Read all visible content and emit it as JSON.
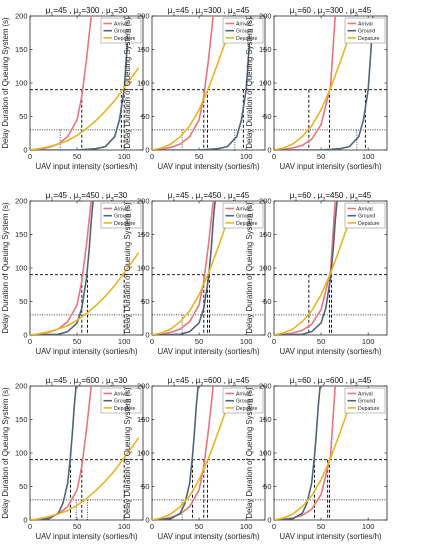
{
  "colors": {
    "arrival": "#e8767e",
    "ground": "#536474",
    "departure": "#e8b424",
    "reference": "#000000",
    "background": "#ffffff"
  },
  "shared": {
    "ylabel": "Delay Duration of Queuing System (s)",
    "xlabel": "UAV input intensity (sorties/h)",
    "xlim": [
      0,
      120
    ],
    "ylim": [
      0,
      200
    ],
    "xticks": [
      "0",
      "50",
      "100"
    ],
    "yticks": [
      "0",
      "50",
      "100",
      "150",
      "200"
    ],
    "legend": [
      "Arrival",
      "Ground",
      "Depature"
    ],
    "legend_position": "top-right"
  },
  "chart_data": [
    {
      "type": "line",
      "title": {
        "mu1": "45",
        "mu2": "300",
        "mu3": "30"
      },
      "series": [
        {
          "name": "Arrival",
          "x": [
            0,
            10,
            20,
            30,
            40,
            50,
            55,
            60,
            65
          ],
          "y": [
            0,
            1,
            4,
            9,
            20,
            45,
            80,
            135,
            200
          ]
        },
        {
          "name": "Ground",
          "x": [
            0,
            50,
            70,
            80,
            90,
            95,
            100,
            103,
            105
          ],
          "y": [
            0,
            0,
            2,
            5,
            20,
            45,
            90,
            150,
            200
          ]
        },
        {
          "name": "Depature",
          "x": [
            0,
            10,
            20,
            30,
            40,
            50,
            60,
            70,
            80,
            90,
            100,
            110,
            115
          ],
          "y": [
            0,
            2,
            5,
            9,
            14,
            22,
            32,
            44,
            58,
            74,
            93,
            112,
            122
          ]
        }
      ],
      "h_refs": [
        {
          "y": 90,
          "style": "dashed"
        },
        {
          "y": 30,
          "style": "dotted"
        }
      ],
      "v_refs": [
        {
          "x": 55,
          "y": 90,
          "style": "dashed"
        },
        {
          "x": 97,
          "y": 90,
          "style": "dashed"
        },
        {
          "x": 100,
          "y": 90,
          "style": "dashed"
        },
        {
          "x": 32,
          "y": 30,
          "style": "dotted"
        }
      ]
    },
    {
      "type": "line",
      "title": {
        "mu1": "45",
        "mu2": "300",
        "mu3": "45"
      },
      "series": [
        {
          "name": "Arrival",
          "x": [
            0,
            10,
            20,
            30,
            40,
            50,
            55,
            60,
            65
          ],
          "y": [
            0,
            1,
            4,
            9,
            20,
            45,
            80,
            135,
            200
          ]
        },
        {
          "name": "Ground",
          "x": [
            0,
            50,
            70,
            80,
            90,
            95,
            100,
            103,
            105
          ],
          "y": [
            0,
            0,
            2,
            5,
            20,
            45,
            90,
            150,
            200
          ]
        },
        {
          "name": "Depature",
          "x": [
            0,
            10,
            20,
            30,
            40,
            50,
            60,
            70,
            80,
            85
          ],
          "y": [
            0,
            3,
            9,
            20,
            36,
            60,
            92,
            130,
            170,
            185
          ]
        }
      ],
      "h_refs": [
        {
          "y": 90,
          "style": "dashed"
        },
        {
          "y": 30,
          "style": "dotted"
        }
      ],
      "v_refs": [
        {
          "x": 55,
          "y": 90,
          "style": "dashed"
        },
        {
          "x": 59,
          "y": 90,
          "style": "dashed"
        },
        {
          "x": 97,
          "y": 90,
          "style": "dashed"
        },
        {
          "x": 32,
          "y": 30,
          "style": "dotted"
        },
        {
          "x": 88,
          "y": 30,
          "style": "dotted"
        }
      ]
    },
    {
      "type": "line",
      "title": {
        "mu1": "60",
        "mu2": "300",
        "mu3": "45"
      },
      "series": [
        {
          "name": "Arrival",
          "x": [
            0,
            10,
            20,
            30,
            40,
            50,
            60,
            65
          ],
          "y": [
            0,
            1,
            3,
            7,
            16,
            38,
            95,
            200
          ]
        },
        {
          "name": "Ground",
          "x": [
            0,
            50,
            70,
            80,
            90,
            95,
            100,
            103,
            105
          ],
          "y": [
            0,
            0,
            2,
            5,
            20,
            45,
            90,
            150,
            200
          ]
        },
        {
          "name": "Depature",
          "x": [
            0,
            10,
            20,
            30,
            40,
            50,
            60,
            70,
            80,
            85
          ],
          "y": [
            0,
            3,
            9,
            20,
            36,
            60,
            92,
            130,
            170,
            185
          ]
        }
      ],
      "h_refs": [
        {
          "y": 90,
          "style": "dashed"
        },
        {
          "y": 30,
          "style": "dotted"
        }
      ],
      "v_refs": [
        {
          "x": 37,
          "y": 90,
          "style": "dashed"
        },
        {
          "x": 59,
          "y": 90,
          "style": "dashed"
        },
        {
          "x": 97,
          "y": 90,
          "style": "dashed"
        },
        {
          "x": 88,
          "y": 30,
          "style": "dotted"
        }
      ]
    },
    {
      "type": "line",
      "title": {
        "mu1": "45",
        "mu2": "450",
        "mu3": "30"
      },
      "series": [
        {
          "name": "Arrival",
          "x": [
            0,
            10,
            20,
            30,
            40,
            50,
            55,
            60,
            65
          ],
          "y": [
            0,
            1,
            4,
            9,
            20,
            45,
            80,
            135,
            200
          ]
        },
        {
          "name": "Ground",
          "x": [
            0,
            30,
            40,
            50,
            55,
            60,
            63,
            65,
            67
          ],
          "y": [
            0,
            1,
            5,
            18,
            40,
            85,
            130,
            170,
            200
          ]
        },
        {
          "name": "Depature",
          "x": [
            0,
            10,
            20,
            30,
            40,
            50,
            60,
            70,
            80,
            90,
            100,
            110,
            115
          ],
          "y": [
            0,
            2,
            5,
            9,
            14,
            22,
            32,
            44,
            58,
            74,
            93,
            112,
            122
          ]
        }
      ],
      "h_refs": [
        {
          "y": 90,
          "style": "dashed"
        },
        {
          "y": 30,
          "style": "dotted"
        }
      ],
      "v_refs": [
        {
          "x": 55,
          "y": 90,
          "style": "dashed"
        },
        {
          "x": 61,
          "y": 90,
          "style": "dashed"
        },
        {
          "x": 100,
          "y": 90,
          "style": "dashed"
        }
      ]
    },
    {
      "type": "line",
      "title": {
        "mu1": "45",
        "mu2": "450",
        "mu3": "45"
      },
      "series": [
        {
          "name": "Arrival",
          "x": [
            0,
            10,
            20,
            30,
            40,
            50,
            55,
            60,
            65
          ],
          "y": [
            0,
            1,
            4,
            9,
            20,
            45,
            80,
            135,
            200
          ]
        },
        {
          "name": "Ground",
          "x": [
            0,
            30,
            40,
            50,
            55,
            60,
            63,
            65,
            67
          ],
          "y": [
            0,
            1,
            5,
            18,
            40,
            85,
            130,
            170,
            200
          ]
        },
        {
          "name": "Depature",
          "x": [
            0,
            10,
            20,
            30,
            40,
            50,
            60,
            70,
            80,
            85
          ],
          "y": [
            0,
            3,
            9,
            20,
            36,
            60,
            92,
            130,
            170,
            185
          ]
        }
      ],
      "h_refs": [
        {
          "y": 90,
          "style": "dashed"
        },
        {
          "y": 30,
          "style": "dotted"
        }
      ],
      "v_refs": [
        {
          "x": 55,
          "y": 90,
          "style": "dashed"
        },
        {
          "x": 59,
          "y": 90,
          "style": "dashed"
        },
        {
          "x": 61,
          "y": 90,
          "style": "dashed"
        },
        {
          "x": 32,
          "y": 30,
          "style": "dotted"
        }
      ]
    },
    {
      "type": "line",
      "title": {
        "mu1": "60",
        "mu2": "450",
        "mu3": "45"
      },
      "series": [
        {
          "name": "Arrival",
          "x": [
            0,
            10,
            20,
            30,
            40,
            50,
            60,
            65
          ],
          "y": [
            0,
            1,
            3,
            7,
            16,
            38,
            95,
            200
          ]
        },
        {
          "name": "Ground",
          "x": [
            0,
            30,
            40,
            50,
            55,
            60,
            63,
            65,
            67
          ],
          "y": [
            0,
            1,
            5,
            18,
            40,
            85,
            130,
            170,
            200
          ]
        },
        {
          "name": "Depature",
          "x": [
            0,
            10,
            20,
            30,
            40,
            50,
            60,
            70,
            80,
            85
          ],
          "y": [
            0,
            3,
            9,
            20,
            36,
            60,
            92,
            130,
            170,
            185
          ]
        }
      ],
      "h_refs": [
        {
          "y": 90,
          "style": "dashed"
        },
        {
          "y": 30,
          "style": "dotted"
        }
      ],
      "v_refs": [
        {
          "x": 37,
          "y": 90,
          "style": "dashed"
        },
        {
          "x": 59,
          "y": 90,
          "style": "dashed"
        },
        {
          "x": 61,
          "y": 90,
          "style": "dashed"
        }
      ]
    },
    {
      "type": "line",
      "title": {
        "mu1": "45",
        "mu2": "600",
        "mu3": "30"
      },
      "series": [
        {
          "name": "Arrival",
          "x": [
            0,
            10,
            20,
            30,
            40,
            50,
            55,
            60,
            65
          ],
          "y": [
            0,
            1,
            4,
            9,
            20,
            45,
            80,
            135,
            200
          ]
        },
        {
          "name": "Ground",
          "x": [
            0,
            20,
            30,
            35,
            40,
            43,
            45,
            47,
            49
          ],
          "y": [
            0,
            2,
            10,
            25,
            55,
            95,
            130,
            170,
            200
          ]
        },
        {
          "name": "Depature",
          "x": [
            0,
            10,
            20,
            30,
            40,
            50,
            60,
            70,
            80,
            90,
            100,
            110,
            115
          ],
          "y": [
            0,
            2,
            5,
            9,
            14,
            22,
            32,
            44,
            58,
            74,
            93,
            112,
            122
          ]
        }
      ],
      "h_refs": [
        {
          "y": 90,
          "style": "dashed"
        },
        {
          "y": 30,
          "style": "dotted"
        }
      ],
      "v_refs": [
        {
          "x": 43,
          "y": 90,
          "style": "dashed"
        },
        {
          "x": 55,
          "y": 90,
          "style": "dashed"
        },
        {
          "x": 100,
          "y": 90,
          "style": "dashed"
        },
        {
          "x": 49,
          "y": 30,
          "style": "dotted"
        },
        {
          "x": 61,
          "y": 30,
          "style": "dotted"
        }
      ]
    },
    {
      "type": "line",
      "title": {
        "mu1": "45",
        "mu2": "600",
        "mu3": "45"
      },
      "series": [
        {
          "name": "Arrival",
          "x": [
            0,
            10,
            20,
            30,
            40,
            50,
            55,
            60,
            65
          ],
          "y": [
            0,
            1,
            4,
            9,
            20,
            45,
            80,
            135,
            200
          ]
        },
        {
          "name": "Ground",
          "x": [
            0,
            20,
            30,
            35,
            40,
            43,
            45,
            47,
            49
          ],
          "y": [
            0,
            2,
            10,
            25,
            55,
            95,
            130,
            170,
            200
          ]
        },
        {
          "name": "Depature",
          "x": [
            0,
            10,
            20,
            30,
            40,
            50,
            60,
            70,
            80,
            85
          ],
          "y": [
            0,
            3,
            9,
            20,
            36,
            60,
            92,
            130,
            170,
            185
          ]
        }
      ],
      "h_refs": [
        {
          "y": 90,
          "style": "dashed"
        },
        {
          "y": 30,
          "style": "dotted"
        }
      ],
      "v_refs": [
        {
          "x": 43,
          "y": 90,
          "style": "dashed"
        },
        {
          "x": 55,
          "y": 90,
          "style": "dashed"
        },
        {
          "x": 59,
          "y": 90,
          "style": "dashed"
        },
        {
          "x": 32,
          "y": 30,
          "style": "dotted"
        }
      ]
    },
    {
      "type": "line",
      "title": {
        "mu1": "60",
        "mu2": "600",
        "mu3": "45"
      },
      "series": [
        {
          "name": "Arrival",
          "x": [
            0,
            10,
            20,
            30,
            40,
            50,
            60,
            65
          ],
          "y": [
            0,
            1,
            3,
            7,
            16,
            38,
            95,
            200
          ]
        },
        {
          "name": "Ground",
          "x": [
            0,
            20,
            30,
            35,
            40,
            43,
            45,
            47,
            49
          ],
          "y": [
            0,
            2,
            10,
            25,
            55,
            95,
            130,
            170,
            200
          ]
        },
        {
          "name": "Depature",
          "x": [
            0,
            10,
            20,
            30,
            40,
            50,
            60,
            70,
            80,
            85
          ],
          "y": [
            0,
            3,
            9,
            20,
            36,
            60,
            92,
            130,
            170,
            185
          ]
        }
      ],
      "h_refs": [
        {
          "y": 90,
          "style": "dashed"
        },
        {
          "y": 30,
          "style": "dotted"
        }
      ],
      "v_refs": [
        {
          "x": 43,
          "y": 90,
          "style": "dashed"
        },
        {
          "x": 57,
          "y": 90,
          "style": "dashed"
        },
        {
          "x": 59,
          "y": 90,
          "style": "dashed"
        }
      ]
    }
  ]
}
